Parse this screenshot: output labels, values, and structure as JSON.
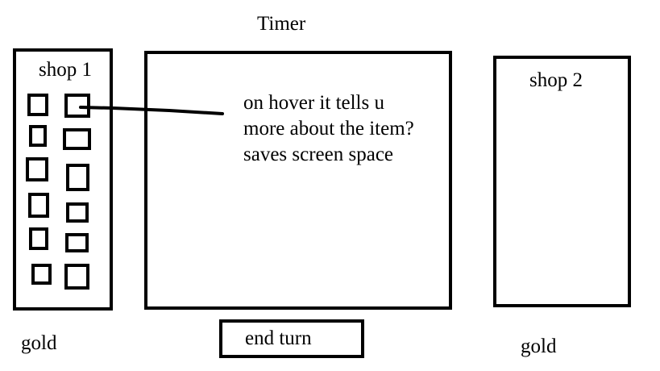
{
  "header": {
    "timer_label": "Timer"
  },
  "shop1": {
    "title": "shop 1",
    "item_count": 12
  },
  "shop2": {
    "title": "shop 2"
  },
  "main": {
    "hover_note_lines": [
      "on hover it tells u",
      "more about the item?",
      "saves screen space"
    ]
  },
  "footer": {
    "gold_left": "gold",
    "end_turn_label": "end turn",
    "gold_right": "gold"
  },
  "colors": {
    "ink": "#000000",
    "background": "#ffffff"
  }
}
